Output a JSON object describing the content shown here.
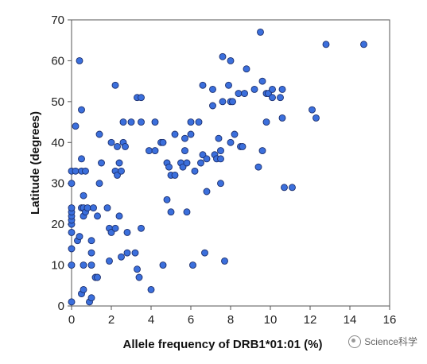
{
  "chart_data": {
    "type": "scatter",
    "xlabel": "Allele frequency of DRB1*01:01 (%)",
    "ylabel": "Latitude (degrees)",
    "xlim": [
      0,
      16
    ],
    "ylim": [
      0,
      70
    ],
    "xticks": [
      0,
      2,
      4,
      6,
      8,
      10,
      12,
      14,
      16
    ],
    "yticks": [
      0,
      10,
      20,
      30,
      40,
      50,
      60,
      70
    ],
    "grid": false,
    "marker_color": "#3b6fdc",
    "series": [
      {
        "points": [
          [
            0.0,
            1
          ],
          [
            0.0,
            10
          ],
          [
            0.0,
            14
          ],
          [
            0.0,
            18
          ],
          [
            0.0,
            20
          ],
          [
            0.0,
            21
          ],
          [
            0.0,
            22
          ],
          [
            0.0,
            23
          ],
          [
            0.0,
            24
          ],
          [
            0.0,
            30
          ],
          [
            0.0,
            33
          ],
          [
            0.2,
            33
          ],
          [
            0.2,
            44
          ],
          [
            0.3,
            16
          ],
          [
            0.4,
            60
          ],
          [
            0.4,
            17
          ],
          [
            0.5,
            3
          ],
          [
            0.5,
            24
          ],
          [
            0.5,
            33
          ],
          [
            0.5,
            36
          ],
          [
            0.5,
            48
          ],
          [
            0.6,
            4
          ],
          [
            0.6,
            10
          ],
          [
            0.6,
            22
          ],
          [
            0.6,
            24
          ],
          [
            0.6,
            27
          ],
          [
            0.7,
            23
          ],
          [
            0.7,
            33
          ],
          [
            0.8,
            24
          ],
          [
            0.9,
            1
          ],
          [
            1.0,
            2
          ],
          [
            1.0,
            10
          ],
          [
            1.0,
            13
          ],
          [
            1.0,
            16
          ],
          [
            1.1,
            24
          ],
          [
            1.2,
            7
          ],
          [
            1.3,
            7
          ],
          [
            1.3,
            22
          ],
          [
            1.4,
            30
          ],
          [
            1.4,
            42
          ],
          [
            1.5,
            35
          ],
          [
            1.8,
            24
          ],
          [
            1.9,
            11
          ],
          [
            1.9,
            19
          ],
          [
            2.0,
            18
          ],
          [
            2.0,
            40
          ],
          [
            2.2,
            19
          ],
          [
            2.2,
            33
          ],
          [
            2.2,
            54
          ],
          [
            2.3,
            32
          ],
          [
            2.3,
            39
          ],
          [
            2.4,
            22
          ],
          [
            2.4,
            35
          ],
          [
            2.5,
            12
          ],
          [
            2.5,
            33
          ],
          [
            2.6,
            40
          ],
          [
            2.6,
            45
          ],
          [
            2.7,
            39
          ],
          [
            2.8,
            13
          ],
          [
            2.8,
            18
          ],
          [
            3.0,
            45
          ],
          [
            3.2,
            13
          ],
          [
            3.3,
            9
          ],
          [
            3.3,
            51
          ],
          [
            3.4,
            7
          ],
          [
            3.5,
            45
          ],
          [
            3.5,
            19
          ],
          [
            3.5,
            51
          ],
          [
            3.9,
            38
          ],
          [
            4.0,
            4
          ],
          [
            4.2,
            38
          ],
          [
            4.2,
            45
          ],
          [
            4.5,
            40
          ],
          [
            4.6,
            10
          ],
          [
            4.6,
            40
          ],
          [
            4.8,
            26
          ],
          [
            4.8,
            35
          ],
          [
            4.9,
            34
          ],
          [
            5.0,
            23
          ],
          [
            5.0,
            32
          ],
          [
            5.2,
            42
          ],
          [
            5.2,
            32
          ],
          [
            5.5,
            35
          ],
          [
            5.6,
            34
          ],
          [
            5.7,
            41
          ],
          [
            5.7,
            38
          ],
          [
            5.8,
            23
          ],
          [
            5.8,
            35
          ],
          [
            6.0,
            42
          ],
          [
            6.0,
            45
          ],
          [
            6.1,
            10
          ],
          [
            6.2,
            33
          ],
          [
            6.4,
            45
          ],
          [
            6.5,
            35
          ],
          [
            6.6,
            37
          ],
          [
            6.6,
            54
          ],
          [
            6.7,
            13
          ],
          [
            6.8,
            28
          ],
          [
            6.8,
            36
          ],
          [
            7.1,
            49
          ],
          [
            7.1,
            53
          ],
          [
            7.2,
            37
          ],
          [
            7.3,
            36
          ],
          [
            7.4,
            41
          ],
          [
            7.5,
            30
          ],
          [
            7.5,
            36
          ],
          [
            7.5,
            38
          ],
          [
            7.6,
            50
          ],
          [
            7.6,
            61
          ],
          [
            7.7,
            11
          ],
          [
            7.9,
            54
          ],
          [
            8.0,
            40
          ],
          [
            8.0,
            50
          ],
          [
            8.0,
            60
          ],
          [
            8.1,
            50
          ],
          [
            8.2,
            42
          ],
          [
            8.4,
            52
          ],
          [
            8.5,
            39
          ],
          [
            8.6,
            39
          ],
          [
            8.7,
            52
          ],
          [
            8.8,
            58
          ],
          [
            9.2,
            53
          ],
          [
            9.4,
            34
          ],
          [
            9.5,
            67
          ],
          [
            9.6,
            55
          ],
          [
            9.6,
            38
          ],
          [
            9.8,
            45
          ],
          [
            9.8,
            52
          ],
          [
            9.9,
            52
          ],
          [
            10.1,
            51
          ],
          [
            10.1,
            53
          ],
          [
            10.5,
            51
          ],
          [
            10.6,
            46
          ],
          [
            10.6,
            53
          ],
          [
            10.7,
            29
          ],
          [
            11.1,
            29
          ],
          [
            12.1,
            48
          ],
          [
            12.3,
            46
          ],
          [
            12.8,
            64
          ],
          [
            14.7,
            64
          ]
        ]
      }
    ]
  },
  "watermark": {
    "text": "Science科学",
    "icon": "wechat-channel-icon"
  }
}
